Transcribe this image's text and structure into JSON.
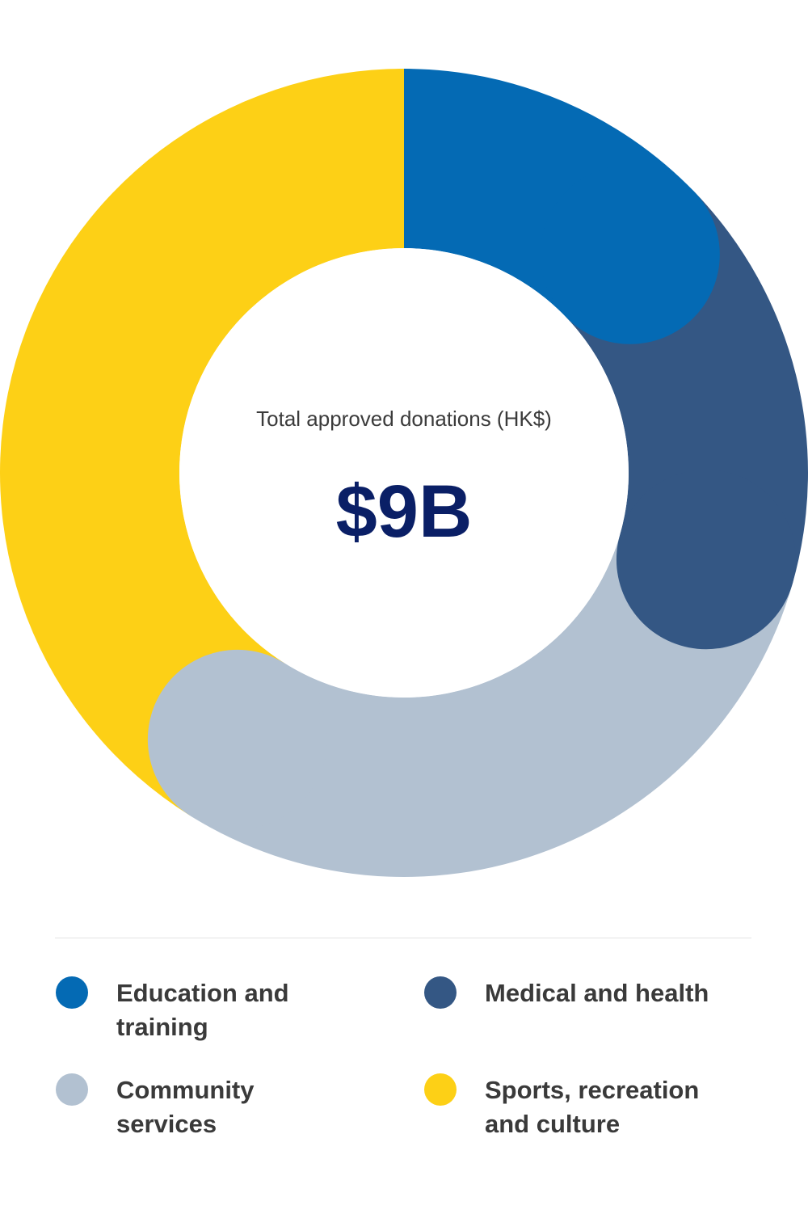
{
  "chart_data": {
    "type": "pie",
    "center_label": "Total approved donations (HK$)",
    "center_value": "$9B",
    "slices": [
      {
        "name": "Education and training",
        "color": "#046ab4"
      },
      {
        "name": "Medical and health",
        "color": "#345784"
      },
      {
        "name": "Community services",
        "color": "#b2c1d1"
      },
      {
        "name": "Sports, recreation and culture",
        "color": "#fdd016"
      }
    ]
  },
  "legend": {
    "items": [
      {
        "label": "Education and training",
        "color": "#046ab4"
      },
      {
        "label": "Medical and health",
        "color": "#345784"
      },
      {
        "label": "Community services",
        "color": "#b2c1d1"
      },
      {
        "label": "Sports, recreation and culture",
        "color": "#fdd016"
      }
    ]
  }
}
